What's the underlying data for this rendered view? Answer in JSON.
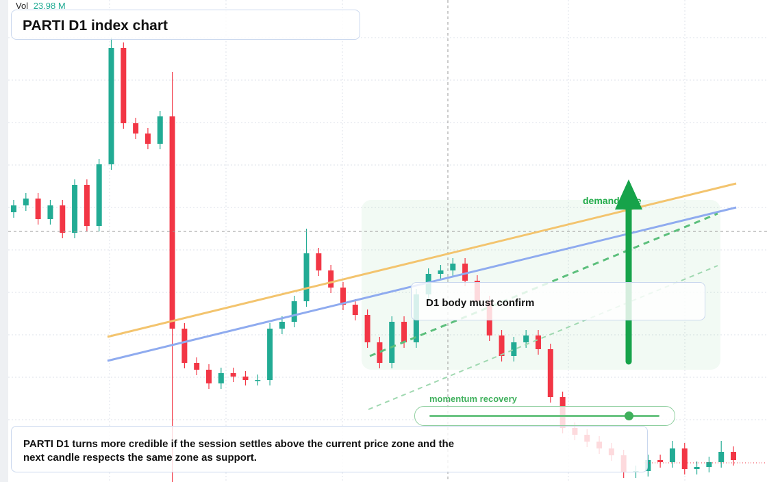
{
  "chart_data": {
    "type": "candlestick",
    "title": "PARTI D1 index chart",
    "volume_label": "Vol",
    "volume": "23.98 M",
    "annotations": {
      "zone": "demand side",
      "confirm": "D1 body must confirm",
      "slider": "momentum recovery",
      "note": "PARTI D1 turns more credible if the session settles above the current price zone and the next candle respects the same zone as support."
    },
    "up_color": "#22ab94",
    "down_color": "#f23645",
    "ylim": [
      0,
      704
    ],
    "open": [
      394,
      404,
      414,
      384,
      404,
      364,
      434,
      374,
      464,
      634,
      524,
      509,
      494,
      534,
      224,
      174,
      164,
      144,
      159,
      154,
      149,
      149,
      224,
      234,
      264,
      334,
      309,
      284,
      259,
      244,
      204,
      174,
      234,
      204,
      274,
      304,
      309,
      319,
      294,
      264,
      214,
      184,
      204,
      214,
      194,
      124,
      79,
      69,
      59,
      49,
      39,
      14,
      16,
      32,
      29,
      49,
      19,
      22,
      29,
      44
    ],
    "high": [
      412,
      422,
      422,
      412,
      412,
      442,
      442,
      472,
      649,
      642,
      532,
      517,
      542,
      599,
      232,
      182,
      172,
      167,
      167,
      162,
      157,
      232,
      242,
      272,
      370,
      342,
      317,
      292,
      267,
      252,
      212,
      242,
      242,
      282,
      312,
      317,
      327,
      327,
      302,
      272,
      222,
      212,
      222,
      222,
      202,
      132,
      87,
      77,
      67,
      57,
      47,
      24,
      40,
      40,
      60,
      57,
      30,
      37,
      60,
      52
    ],
    "low": [
      386,
      396,
      376,
      376,
      356,
      356,
      366,
      366,
      456,
      516,
      501,
      486,
      486,
      0,
      166,
      156,
      136,
      136,
      146,
      141,
      141,
      141,
      216,
      226,
      256,
      301,
      276,
      251,
      236,
      196,
      166,
      166,
      196,
      196,
      266,
      296,
      301,
      286,
      256,
      206,
      176,
      176,
      196,
      186,
      116,
      71,
      61,
      51,
      41,
      31,
      6,
      6,
      8,
      21,
      21,
      11,
      11,
      14,
      21,
      24
    ],
    "close": [
      404,
      414,
      384,
      404,
      364,
      434,
      374,
      464,
      634,
      524,
      509,
      494,
      534,
      224,
      174,
      164,
      144,
      159,
      154,
      149,
      149,
      224,
      234,
      264,
      334,
      309,
      284,
      259,
      244,
      204,
      174,
      234,
      204,
      274,
      304,
      309,
      319,
      294,
      264,
      214,
      184,
      204,
      214,
      194,
      124,
      79,
      69,
      59,
      49,
      39,
      14,
      16,
      32,
      29,
      49,
      19,
      22,
      29,
      44,
      32
    ]
  }
}
